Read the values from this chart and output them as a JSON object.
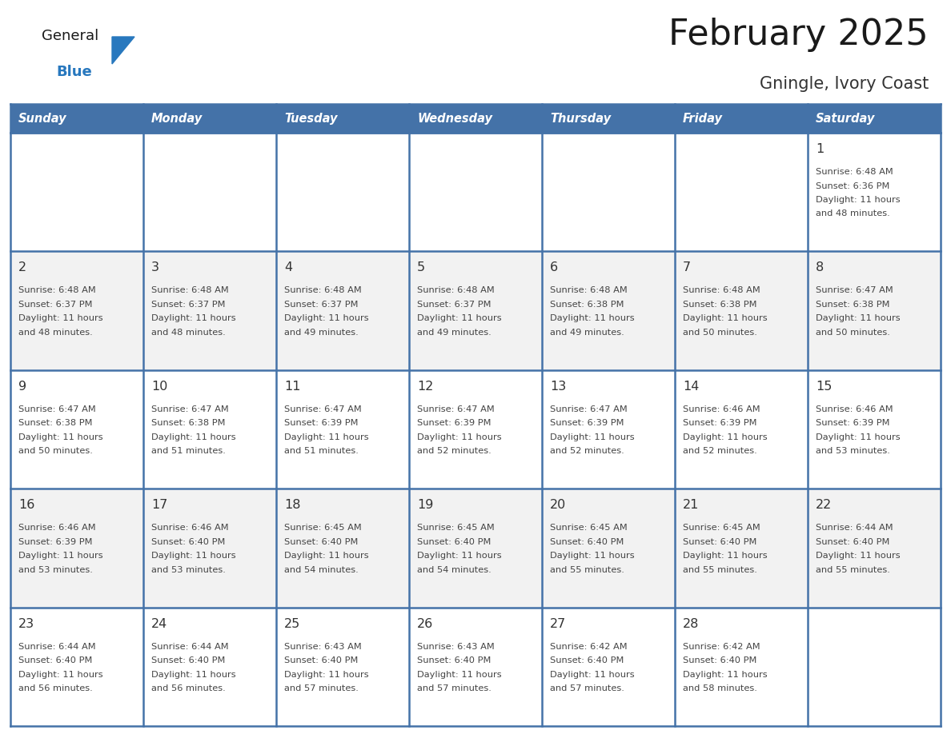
{
  "title": "February 2025",
  "subtitle": "Gningle, Ivory Coast",
  "days_of_week": [
    "Sunday",
    "Monday",
    "Tuesday",
    "Wednesday",
    "Thursday",
    "Friday",
    "Saturday"
  ],
  "header_bg": "#4472a8",
  "header_text": "#ffffff",
  "row_bg_light": "#f2f2f2",
  "row_bg_white": "#ffffff",
  "cell_border": "#4472a8",
  "day_number_color": "#333333",
  "info_text_color": "#444444",
  "title_color": "#1a1a1a",
  "subtitle_color": "#333333",
  "logo_general_color": "#1a1a1a",
  "logo_blue_color": "#2878be",
  "calendar_data": [
    [
      null,
      null,
      null,
      null,
      null,
      null,
      1
    ],
    [
      2,
      3,
      4,
      5,
      6,
      7,
      8
    ],
    [
      9,
      10,
      11,
      12,
      13,
      14,
      15
    ],
    [
      16,
      17,
      18,
      19,
      20,
      21,
      22
    ],
    [
      23,
      24,
      25,
      26,
      27,
      28,
      null
    ]
  ],
  "sunrise_data": {
    "1": "6:48 AM",
    "2": "6:48 AM",
    "3": "6:48 AM",
    "4": "6:48 AM",
    "5": "6:48 AM",
    "6": "6:48 AM",
    "7": "6:48 AM",
    "8": "6:47 AM",
    "9": "6:47 AM",
    "10": "6:47 AM",
    "11": "6:47 AM",
    "12": "6:47 AM",
    "13": "6:47 AM",
    "14": "6:46 AM",
    "15": "6:46 AM",
    "16": "6:46 AM",
    "17": "6:46 AM",
    "18": "6:45 AM",
    "19": "6:45 AM",
    "20": "6:45 AM",
    "21": "6:45 AM",
    "22": "6:44 AM",
    "23": "6:44 AM",
    "24": "6:44 AM",
    "25": "6:43 AM",
    "26": "6:43 AM",
    "27": "6:42 AM",
    "28": "6:42 AM"
  },
  "sunset_data": {
    "1": "6:36 PM",
    "2": "6:37 PM",
    "3": "6:37 PM",
    "4": "6:37 PM",
    "5": "6:37 PM",
    "6": "6:38 PM",
    "7": "6:38 PM",
    "8": "6:38 PM",
    "9": "6:38 PM",
    "10": "6:38 PM",
    "11": "6:39 PM",
    "12": "6:39 PM",
    "13": "6:39 PM",
    "14": "6:39 PM",
    "15": "6:39 PM",
    "16": "6:39 PM",
    "17": "6:40 PM",
    "18": "6:40 PM",
    "19": "6:40 PM",
    "20": "6:40 PM",
    "21": "6:40 PM",
    "22": "6:40 PM",
    "23": "6:40 PM",
    "24": "6:40 PM",
    "25": "6:40 PM",
    "26": "6:40 PM",
    "27": "6:40 PM",
    "28": "6:40 PM"
  },
  "daylight_data": {
    "1": [
      "11 hours",
      "and 48 minutes."
    ],
    "2": [
      "11 hours",
      "and 48 minutes."
    ],
    "3": [
      "11 hours",
      "and 48 minutes."
    ],
    "4": [
      "11 hours",
      "and 49 minutes."
    ],
    "5": [
      "11 hours",
      "and 49 minutes."
    ],
    "6": [
      "11 hours",
      "and 49 minutes."
    ],
    "7": [
      "11 hours",
      "and 50 minutes."
    ],
    "8": [
      "11 hours",
      "and 50 minutes."
    ],
    "9": [
      "11 hours",
      "and 50 minutes."
    ],
    "10": [
      "11 hours",
      "and 51 minutes."
    ],
    "11": [
      "11 hours",
      "and 51 minutes."
    ],
    "12": [
      "11 hours",
      "and 52 minutes."
    ],
    "13": [
      "11 hours",
      "and 52 minutes."
    ],
    "14": [
      "11 hours",
      "and 52 minutes."
    ],
    "15": [
      "11 hours",
      "and 53 minutes."
    ],
    "16": [
      "11 hours",
      "and 53 minutes."
    ],
    "17": [
      "11 hours",
      "and 53 minutes."
    ],
    "18": [
      "11 hours",
      "and 54 minutes."
    ],
    "19": [
      "11 hours",
      "and 54 minutes."
    ],
    "20": [
      "11 hours",
      "and 55 minutes."
    ],
    "21": [
      "11 hours",
      "and 55 minutes."
    ],
    "22": [
      "11 hours",
      "and 55 minutes."
    ],
    "23": [
      "11 hours",
      "and 56 minutes."
    ],
    "24": [
      "11 hours",
      "and 56 minutes."
    ],
    "25": [
      "11 hours",
      "and 57 minutes."
    ],
    "26": [
      "11 hours",
      "and 57 minutes."
    ],
    "27": [
      "11 hours",
      "and 57 minutes."
    ],
    "28": [
      "11 hours",
      "and 58 minutes."
    ]
  },
  "row_backgrounds": [
    "#ffffff",
    "#f2f2f2",
    "#ffffff",
    "#f2f2f2",
    "#ffffff"
  ]
}
